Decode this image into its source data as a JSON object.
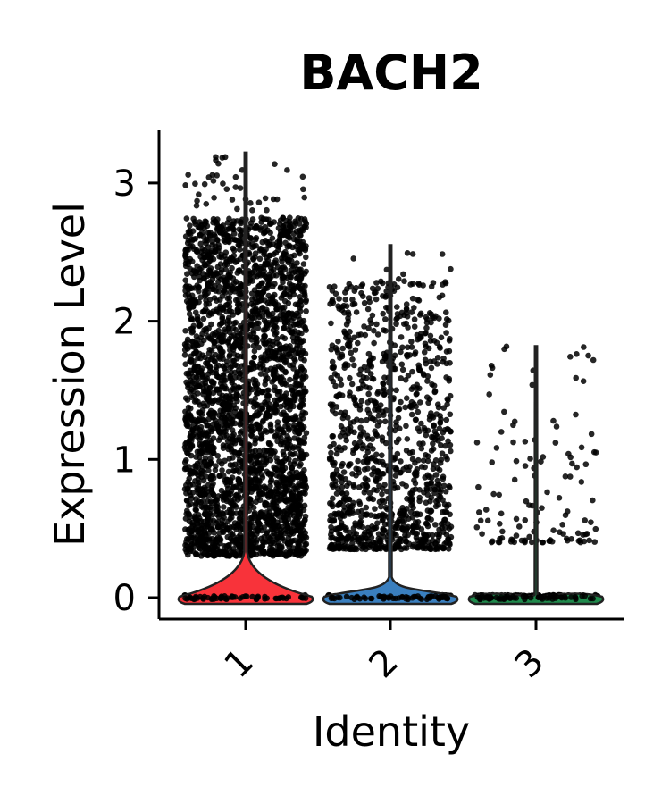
{
  "chart_data": {
    "type": "violin",
    "title": "BACH2",
    "xlabel": "Identity",
    "ylabel": "Expression Level",
    "categories": [
      "1",
      "2",
      "3"
    ],
    "colors": [
      "#f8333a",
      "#3a7fbf",
      "#1f8a4c"
    ],
    "ylim": [
      -0.15,
      3.4
    ],
    "yticks": [
      0,
      1,
      2,
      3
    ],
    "y_tick_labels": [
      "0",
      "1",
      "2",
      "3"
    ],
    "grid": false,
    "legend": "none",
    "groups": [
      {
        "name": "1",
        "max": 3.22,
        "nonzero_range": [
          0.3,
          2.75
        ],
        "zero_fraction": 0.6
      },
      {
        "name": "2",
        "max": 2.55,
        "nonzero_range": [
          0.35,
          2.3
        ],
        "zero_fraction": 0.8
      },
      {
        "name": "3",
        "max": 1.82,
        "nonzero_range": [
          0.4,
          1.8
        ],
        "zero_fraction": 0.97
      }
    ]
  }
}
